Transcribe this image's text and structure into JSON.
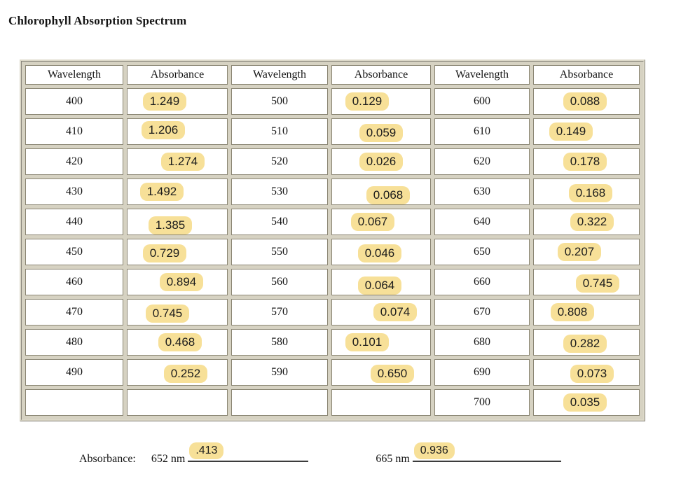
{
  "title": "Chlorophyll Absorption Spectrum",
  "colors": {
    "highlight": "#F7E098",
    "table_frame": "#D6D2C2",
    "cell_border": "#8A8573",
    "text": "#141414"
  },
  "table": {
    "headers": [
      "Wavelength",
      "Absorbance",
      "Wavelength",
      "Absorbance",
      "Wavelength",
      "Absorbance"
    ],
    "rows": [
      [
        "400",
        "1.249",
        "500",
        "0.129",
        "600",
        "0.088"
      ],
      [
        "410",
        "1.206",
        "510",
        "0.059",
        "610",
        "0.149"
      ],
      [
        "420",
        "1.274",
        "520",
        "0.026",
        "620",
        "0.178"
      ],
      [
        "430",
        "1.492",
        "530",
        "0.068",
        "630",
        "0.168"
      ],
      [
        "440",
        "1.385",
        "540",
        "0.067",
        "640",
        "0.322"
      ],
      [
        "450",
        "0.729",
        "550",
        "0.046",
        "650",
        "0.207"
      ],
      [
        "460",
        "0.894",
        "560",
        "0.064",
        "660",
        "0.745"
      ],
      [
        "470",
        "0.745",
        "570",
        "0.074",
        "670",
        "0.808"
      ],
      [
        "480",
        "0.468",
        "580",
        "0.101",
        "680",
        "0.282"
      ],
      [
        "490",
        "0.252",
        "590",
        "0.650",
        "690",
        "0.073"
      ],
      [
        "",
        "",
        "",
        "",
        "700",
        "0.035"
      ]
    ]
  },
  "footer": {
    "label": "Absorbance:",
    "fields": [
      {
        "label": "652 nm",
        "value": ".413"
      },
      {
        "label": "665 nm",
        "value": "0.936"
      }
    ]
  }
}
